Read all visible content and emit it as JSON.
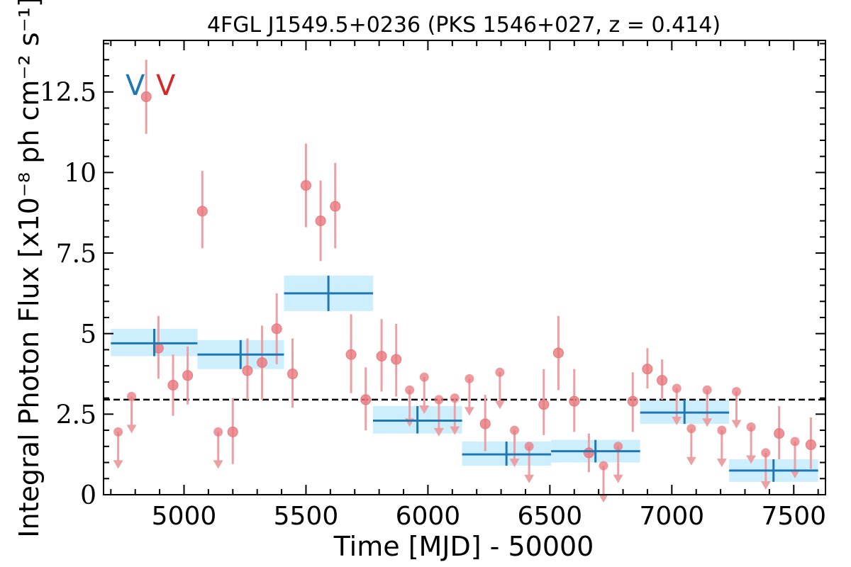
{
  "chart_data": {
    "type": "scatter",
    "title": "4FGL J1549.5+0236 (PKS 1546+027, z = 0.414)",
    "xlabel": "Time [MJD] - 50000",
    "ylabel": "Integral Photon Flux [x10⁻⁸ ph cm⁻² s⁻¹]",
    "xlim": [
      4670,
      7630
    ],
    "ylim": [
      0,
      14.1
    ],
    "xticks": [
      5000,
      5500,
      6000,
      6500,
      7000,
      7500
    ],
    "yticks": [
      {
        "value": 0,
        "label": "0"
      },
      {
        "value": 2.5,
        "label": "2.5"
      },
      {
        "value": 5,
        "label": "5"
      },
      {
        "value": 7.5,
        "label": "7.5"
      },
      {
        "value": 10,
        "label": "10"
      },
      {
        "value": 12.5,
        "label": "12.5"
      }
    ],
    "reference_line": {
      "y": 2.95,
      "style": "dashed",
      "color": "#000000"
    },
    "markers": [
      {
        "label": "V",
        "x": 4800,
        "y": 12.8,
        "color": "#1f77b4"
      },
      {
        "label": "V",
        "x": 4925,
        "y": 12.8,
        "color": "#d62728"
      }
    ],
    "colors": {
      "points": "#e8777c",
      "errorbars": "#eda0a3",
      "blocks": "#1f77b4",
      "block_band": "#cdeefc"
    },
    "series": [
      {
        "values": [
          {
            "x": 4845,
            "y": 12.35,
            "yerr": [
              11.2,
              13.5
            ]
          },
          {
            "x": 4895,
            "y": 4.55,
            "yerr": [
              3.6,
              5.55
            ]
          },
          {
            "x": 4955,
            "y": 3.4,
            "yerr": [
              2.45,
              4.35
            ]
          },
          {
            "x": 5015,
            "y": 3.7,
            "yerr": [
              2.8,
              4.6
            ]
          },
          {
            "x": 5075,
            "y": 8.8,
            "yerr": [
              7.65,
              10.05
            ]
          },
          {
            "x": 5200,
            "y": 1.95,
            "yerr": [
              0.95,
              3.0
            ]
          },
          {
            "x": 5260,
            "y": 3.85,
            "yerr": [
              2.95,
              4.85
            ]
          },
          {
            "x": 5320,
            "y": 4.1,
            "yerr": [
              2.95,
              5.25
            ]
          },
          {
            "x": 5380,
            "y": 5.15,
            "yerr": [
              4.05,
              6.25
            ]
          },
          {
            "x": 5445,
            "y": 3.75,
            "yerr": [
              2.7,
              4.85
            ]
          },
          {
            "x": 5500,
            "y": 9.6,
            "yerr": [
              8.3,
              10.9
            ]
          },
          {
            "x": 5560,
            "y": 8.5,
            "yerr": [
              7.25,
              9.75
            ]
          },
          {
            "x": 5620,
            "y": 8.95,
            "yerr": [
              7.65,
              10.3
            ]
          },
          {
            "x": 5685,
            "y": 4.35,
            "yerr": [
              3.15,
              5.6
            ]
          },
          {
            "x": 5745,
            "y": 2.95,
            "yerr": [
              2.0,
              3.95
            ]
          },
          {
            "x": 5810,
            "y": 4.3,
            "yerr": [
              3.2,
              5.45
            ]
          },
          {
            "x": 5870,
            "y": 4.2,
            "yerr": [
              3.05,
              5.3
            ]
          },
          {
            "x": 6235,
            "y": 2.2,
            "yerr": [
              1.35,
              3.1
            ]
          },
          {
            "x": 6475,
            "y": 2.8,
            "yerr": [
              1.85,
              3.9
            ]
          },
          {
            "x": 6535,
            "y": 4.4,
            "yerr": [
              3.25,
              5.55
            ]
          },
          {
            "x": 6600,
            "y": 2.9,
            "yerr": [
              1.95,
              3.9
            ]
          },
          {
            "x": 6660,
            "y": 1.3,
            "yerr": [
              0.7,
              1.9
            ]
          },
          {
            "x": 6840,
            "y": 2.9,
            "yerr": [
              1.95,
              3.8
            ]
          },
          {
            "x": 6900,
            "y": 3.9,
            "yerr": [
              3.3,
              4.55
            ]
          },
          {
            "x": 6960,
            "y": 3.55,
            "yerr": [
              2.95,
              4.2
            ]
          },
          {
            "x": 7440,
            "y": 1.9,
            "yerr": [
              1.1,
              2.75
            ]
          },
          {
            "x": 7570,
            "y": 1.55,
            "yerr": [
              0.8,
              2.4
            ]
          }
        ]
      },
      {
        "values": [
          {
            "x": 4730,
            "y": 1.95
          },
          {
            "x": 4785,
            "y": 3.05
          },
          {
            "x": 5140,
            "y": 1.95
          },
          {
            "x": 5925,
            "y": 3.25
          },
          {
            "x": 5985,
            "y": 3.65
          },
          {
            "x": 6045,
            "y": 2.95
          },
          {
            "x": 6110,
            "y": 3.0
          },
          {
            "x": 6170,
            "y": 3.6
          },
          {
            "x": 6295,
            "y": 3.8
          },
          {
            "x": 6355,
            "y": 2.0
          },
          {
            "x": 6415,
            "y": 1.5
          },
          {
            "x": 6720,
            "y": 0.9
          },
          {
            "x": 6780,
            "y": 1.5
          },
          {
            "x": 7020,
            "y": 3.3
          },
          {
            "x": 7080,
            "y": 2.05
          },
          {
            "x": 7145,
            "y": 3.25
          },
          {
            "x": 7205,
            "y": 2.0
          },
          {
            "x": 7265,
            "y": 3.2
          },
          {
            "x": 7325,
            "y": 2.1
          },
          {
            "x": 7385,
            "y": 1.3
          },
          {
            "x": 7505,
            "y": 1.65
          }
        ]
      },
      {
        "values": [
          {
            "x0": 4700,
            "x1": 5055,
            "y": 4.7,
            "ylo": 4.3,
            "yhi": 5.15,
            "xc": 4878
          },
          {
            "x0": 5055,
            "x1": 5410,
            "y": 4.35,
            "ylo": 3.9,
            "yhi": 4.8,
            "xc": 5232
          },
          {
            "x0": 5410,
            "x1": 5775,
            "y": 6.25,
            "ylo": 5.7,
            "yhi": 6.8,
            "xc": 5592
          },
          {
            "x0": 5775,
            "x1": 6140,
            "y": 2.3,
            "ylo": 1.9,
            "yhi": 2.75,
            "xc": 5957
          },
          {
            "x0": 6140,
            "x1": 6505,
            "y": 1.25,
            "ylo": 0.9,
            "yhi": 1.65,
            "xc": 6322
          },
          {
            "x0": 6505,
            "x1": 6870,
            "y": 1.35,
            "ylo": 1.0,
            "yhi": 1.7,
            "xc": 6687
          },
          {
            "x0": 6870,
            "x1": 7235,
            "y": 2.55,
            "ylo": 2.2,
            "yhi": 2.95,
            "xc": 7052
          },
          {
            "x0": 7235,
            "x1": 7600,
            "y": 0.75,
            "ylo": 0.4,
            "yhi": 1.1,
            "xc": 7417
          }
        ]
      }
    ]
  }
}
